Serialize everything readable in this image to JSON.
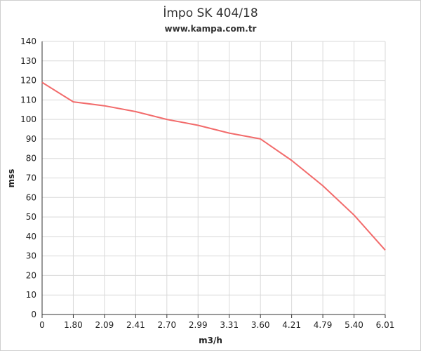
{
  "chart_data": {
    "type": "line",
    "title": "İmpo SK 404/18",
    "subtitle": "www.kampa.com.tr",
    "xlabel": "m3/h",
    "ylabel": "mss",
    "categories": [
      "0",
      "1.80",
      "2.09",
      "2.41",
      "2.70",
      "2.99",
      "3.31",
      "3.60",
      "4.21",
      "4.79",
      "5.40",
      "6.01"
    ],
    "series": [
      {
        "values": [
          119,
          109,
          107,
          104,
          100,
          97,
          93,
          90,
          79,
          66,
          51,
          33
        ]
      }
    ],
    "ylim": [
      0,
      140
    ],
    "yticks": [
      0,
      10,
      20,
      30,
      40,
      50,
      60,
      70,
      80,
      90,
      100,
      110,
      120,
      130,
      140
    ],
    "grid": true,
    "line_color": "#f26b6b",
    "grid_color": "#d9d9d9",
    "axis_color": "#333333"
  }
}
